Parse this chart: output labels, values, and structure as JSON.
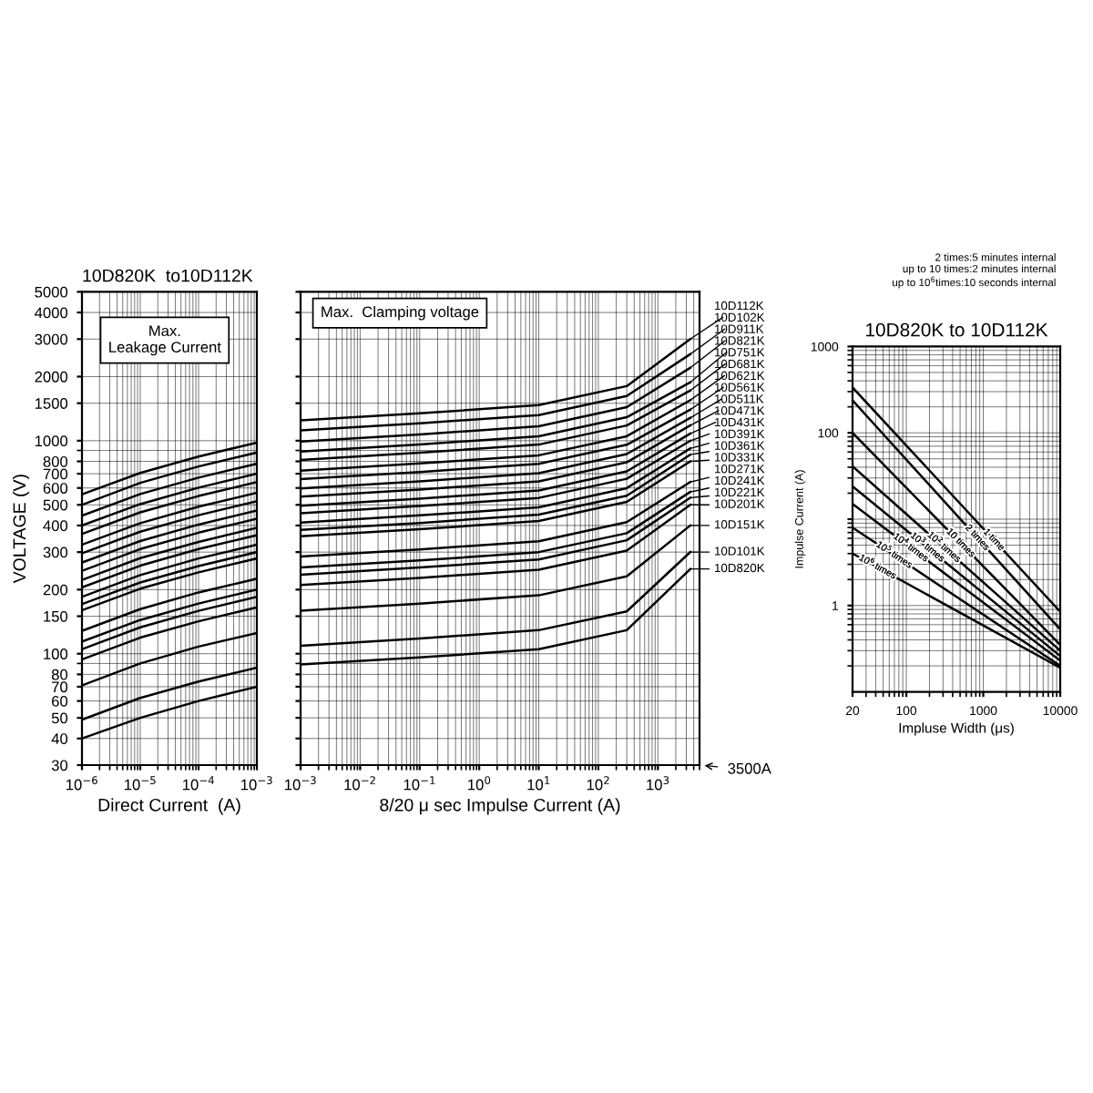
{
  "chart_data": [
    {
      "type": "line",
      "title": "10D820K  to10D112K",
      "ylabel": "VOLTAGE (V)",
      "xlabel": "Direct Current  (A)",
      "log": "xy",
      "grid": true,
      "xlim": [
        1e-06,
        0.001
      ],
      "ylim": [
        30,
        5000
      ],
      "xticks": [
        {
          "value": 1e-06,
          "label": "10$^{−6}$"
        },
        {
          "value": 1e-05,
          "label": "10$^{−5}$"
        },
        {
          "value": 0.0001,
          "label": "10$^{−4}$"
        },
        {
          "value": 0.001,
          "label": "10$^{−3}$"
        }
      ],
      "yticks": [
        30,
        40,
        50,
        60,
        70,
        80,
        100,
        150,
        200,
        300,
        400,
        500,
        600,
        700,
        800,
        1000,
        1500,
        2000,
        3000,
        4000,
        5000
      ],
      "annotations": [
        "Max.\nLeakage Current"
      ],
      "x": [
        1e-06,
        1e-05,
        0.0001,
        0.001
      ],
      "series": [
        {
          "color": "#000000",
          "values": [
            40,
            50,
            60,
            70
          ]
        },
        {
          "color": "#000000",
          "values": [
            49,
            62,
            74,
            86
          ]
        },
        {
          "color": "#000000",
          "values": [
            71,
            90,
            108,
            125
          ]
        },
        {
          "color": "#000000",
          "values": [
            94,
            119,
            142,
            165
          ]
        },
        {
          "color": "#000000",
          "values": [
            105,
            133,
            159,
            185
          ]
        },
        {
          "color": "#000000",
          "values": [
            114,
            144,
            172,
            200
          ]
        },
        {
          "color": "#000000",
          "values": [
            128,
            162,
            194,
            225
          ]
        },
        {
          "color": "#000000",
          "values": [
            160,
            202,
            241,
            280
          ]
        },
        {
          "color": "#000000",
          "values": [
            171,
            216,
            258,
            300
          ]
        },
        {
          "color": "#000000",
          "values": [
            185,
            234,
            280,
            325
          ]
        },
        {
          "color": "#000000",
          "values": [
            205,
            259,
            310,
            360
          ]
        },
        {
          "color": "#000000",
          "values": [
            222,
            281,
            335,
            390
          ]
        },
        {
          "color": "#000000",
          "values": [
            245,
            310,
            370,
            430
          ]
        },
        {
          "color": "#000000",
          "values": [
            268,
            338,
            404,
            470
          ]
        },
        {
          "color": "#000000",
          "values": [
            296,
            374,
            447,
            520
          ]
        },
        {
          "color": "#000000",
          "values": [
            325,
            410,
            490,
            570
          ]
        },
        {
          "color": "#000000",
          "values": [
            365,
            461,
            550,
            640
          ]
        },
        {
          "color": "#000000",
          "values": [
            400,
            504,
            602,
            700
          ]
        },
        {
          "color": "#000000",
          "values": [
            445,
            562,
            671,
            780
          ]
        },
        {
          "color": "#000000",
          "values": [
            500,
            634,
            757,
            880
          ]
        },
        {
          "color": "#000000",
          "values": [
            560,
            706,
            843,
            980
          ]
        }
      ]
    },
    {
      "type": "line",
      "xlabel": "8/20 μ sec Impulse Current (A)",
      "log": "xy",
      "grid": true,
      "tick_labels": "x",
      "legend": "right",
      "xlim": [
        0.001,
        5000
      ],
      "ylim": [
        30,
        5000
      ],
      "xticks": [
        {
          "value": 0.001,
          "label": "10$^{−3}$"
        },
        {
          "value": 0.01,
          "label": "10$^{−2}$"
        },
        {
          "value": 0.1,
          "label": "10$^{−1}$"
        },
        {
          "value": 1,
          "label": "10$^{0}$"
        },
        {
          "value": 10,
          "label": "10$^{1}$"
        },
        {
          "value": 100,
          "label": "10$^{2}$"
        },
        {
          "value": 1000,
          "label": "10$^{3}$"
        }
      ],
      "yticks": [
        30,
        40,
        50,
        60,
        70,
        80,
        100,
        150,
        200,
        300,
        400,
        500,
        600,
        700,
        800,
        1000,
        1500,
        2000,
        3000,
        4000,
        5000
      ],
      "annotations": [
        "Max.  Clamping voltage",
        "3500A"
      ],
      "x": [
        0.001,
        0.1,
        10,
        300,
        3500
      ],
      "series": [
        {
          "name": "10D820K",
          "color": "#000000",
          "values": [
            89,
            96,
            105,
            129,
            250
          ]
        },
        {
          "name": "10D101K",
          "color": "#000000",
          "values": [
            109,
            118,
            129,
            158,
            300
          ]
        },
        {
          "name": "10D151K",
          "color": "#000000",
          "values": [
            159,
            172,
            188,
            231,
            400
          ]
        },
        {
          "name": "10D201K",
          "color": "#000000",
          "values": [
            210,
            227,
            248,
            305,
            500
          ]
        },
        {
          "name": "10D221K",
          "color": "#000000",
          "values": [
            235,
            254,
            277,
            341,
            540
          ]
        },
        {
          "name": "10D241K",
          "color": "#000000",
          "values": [
            254,
            274,
            300,
            368,
            575
          ]
        },
        {
          "name": "10D271K",
          "color": "#000000",
          "values": [
            286,
            309,
            337,
            415,
            640
          ]
        },
        {
          "name": "10D331K",
          "color": "#000000",
          "values": [
            356,
            384,
            420,
            516,
            800
          ]
        },
        {
          "name": "10D361K",
          "color": "#000000",
          "values": [
            381,
            411,
            450,
            552,
            860
          ]
        },
        {
          "name": "10D391K",
          "color": "#000000",
          "values": [
            413,
            446,
            487,
            599,
            920
          ]
        },
        {
          "name": "10D431K",
          "color": "#000000",
          "values": [
            457,
            494,
            539,
            663,
            1000
          ]
        },
        {
          "name": "10D471K",
          "color": "#000000",
          "values": [
            495,
            535,
            584,
            718,
            1080
          ]
        },
        {
          "name": "10D511K",
          "color": "#000000",
          "values": [
            546,
            590,
            644,
            792,
            1180
          ]
        },
        {
          "name": "10D561K",
          "color": "#000000",
          "values": [
            597,
            645,
            704,
            866,
            1280
          ]
        },
        {
          "name": "10D621K",
          "color": "#000000",
          "values": [
            660,
            713,
            779,
            957,
            1400
          ]
        },
        {
          "name": "10D681K",
          "color": "#000000",
          "values": [
            724,
            782,
            854,
            1050,
            1550
          ]
        },
        {
          "name": "10D751K",
          "color": "#000000",
          "values": [
            813,
            878,
            959,
            1179,
            1720
          ]
        },
        {
          "name": "10D821K",
          "color": "#000000",
          "values": [
            889,
            960,
            1049,
            1289,
            1880
          ]
        },
        {
          "name": "10D911K",
          "color": "#000000",
          "values": [
            991,
            1070,
            1169,
            1437,
            2200
          ]
        },
        {
          "name": "10D102K",
          "color": "#000000",
          "values": [
            1118,
            1207,
            1319,
            1621,
            2550
          ]
        },
        {
          "name": "10D112K",
          "color": "#000000",
          "values": [
            1245,
            1345,
            1469,
            1805,
            3000
          ]
        }
      ]
    },
    {
      "type": "line",
      "title": "10D820K to 10D112K",
      "xlabel": "Impluse Width (μs)",
      "ylabel": "Impulse Current (A)",
      "log": "xy",
      "grid": true,
      "xlim": [
        20,
        10000
      ],
      "ylim": [
        0.1,
        1000
      ],
      "xticks": [
        20,
        100,
        1000,
        10000
      ],
      "yticks": [
        1000,
        100,
        {
          "value": 10,
          "label": null
        },
        1
      ],
      "annotations": [
        "2 times:5 minutes internal\nup to 10 times:2 minutes internal\nup to 10$^{6}$times:10 seconds internal"
      ],
      "x": [
        20,
        10000
      ],
      "series": [
        {
          "name": "1 time",
          "color": "#000000",
          "values": [
            335,
            0.85
          ]
        },
        {
          "name": "2 times",
          "color": "#000000",
          "values": [
            238,
            0.53
          ]
        },
        {
          "name": "10 times",
          "color": "#000000",
          "values": [
            100,
            0.35
          ]
        },
        {
          "name": "10$^{2}$ times",
          "color": "#000000",
          "values": [
            41,
            0.3
          ]
        },
        {
          "name": "10$^{3}$ times",
          "color": "#000000",
          "values": [
            24,
            0.26
          ]
        },
        {
          "name": "10$^{4}$ times",
          "color": "#000000",
          "values": [
            15,
            0.23
          ]
        },
        {
          "name": "10$^{5}$ times",
          "color": "#000000",
          "values": [
            8,
            0.2
          ]
        },
        {
          "name": "10$^{6}$ times",
          "color": "#000000",
          "values": [
            4,
            0.19
          ]
        }
      ]
    }
  ]
}
